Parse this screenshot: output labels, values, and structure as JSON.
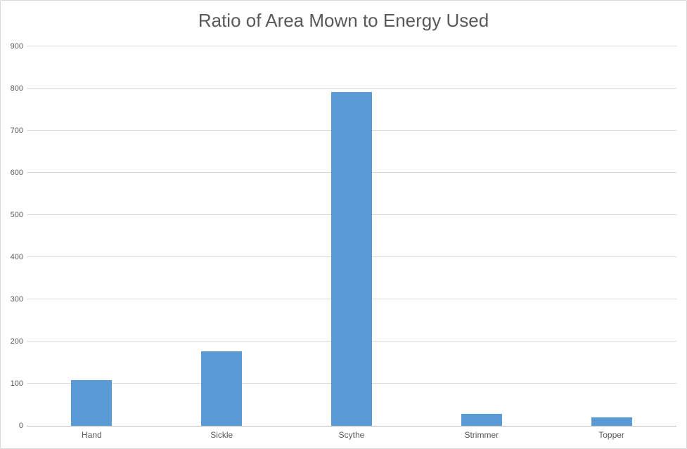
{
  "chart_data": {
    "type": "bar",
    "title": "Ratio of Area Mown to Energy Used",
    "categories": [
      "Hand",
      "Sickle",
      "Scythe",
      "Strimmer",
      "Topper"
    ],
    "values": [
      108,
      177,
      792,
      28,
      20
    ],
    "xlabel": "",
    "ylabel": "",
    "ylim": [
      0,
      900
    ],
    "ytick_step": 100,
    "grid": true,
    "legend": "none",
    "colors": {
      "bar": "#5b9bd5",
      "title_text": "#595959",
      "tick_text": "#595959",
      "gridline": "#d9d9d9",
      "axis_line": "#bfbfbf",
      "chart_border": "#d9d9d9",
      "background": "#ffffff"
    }
  }
}
